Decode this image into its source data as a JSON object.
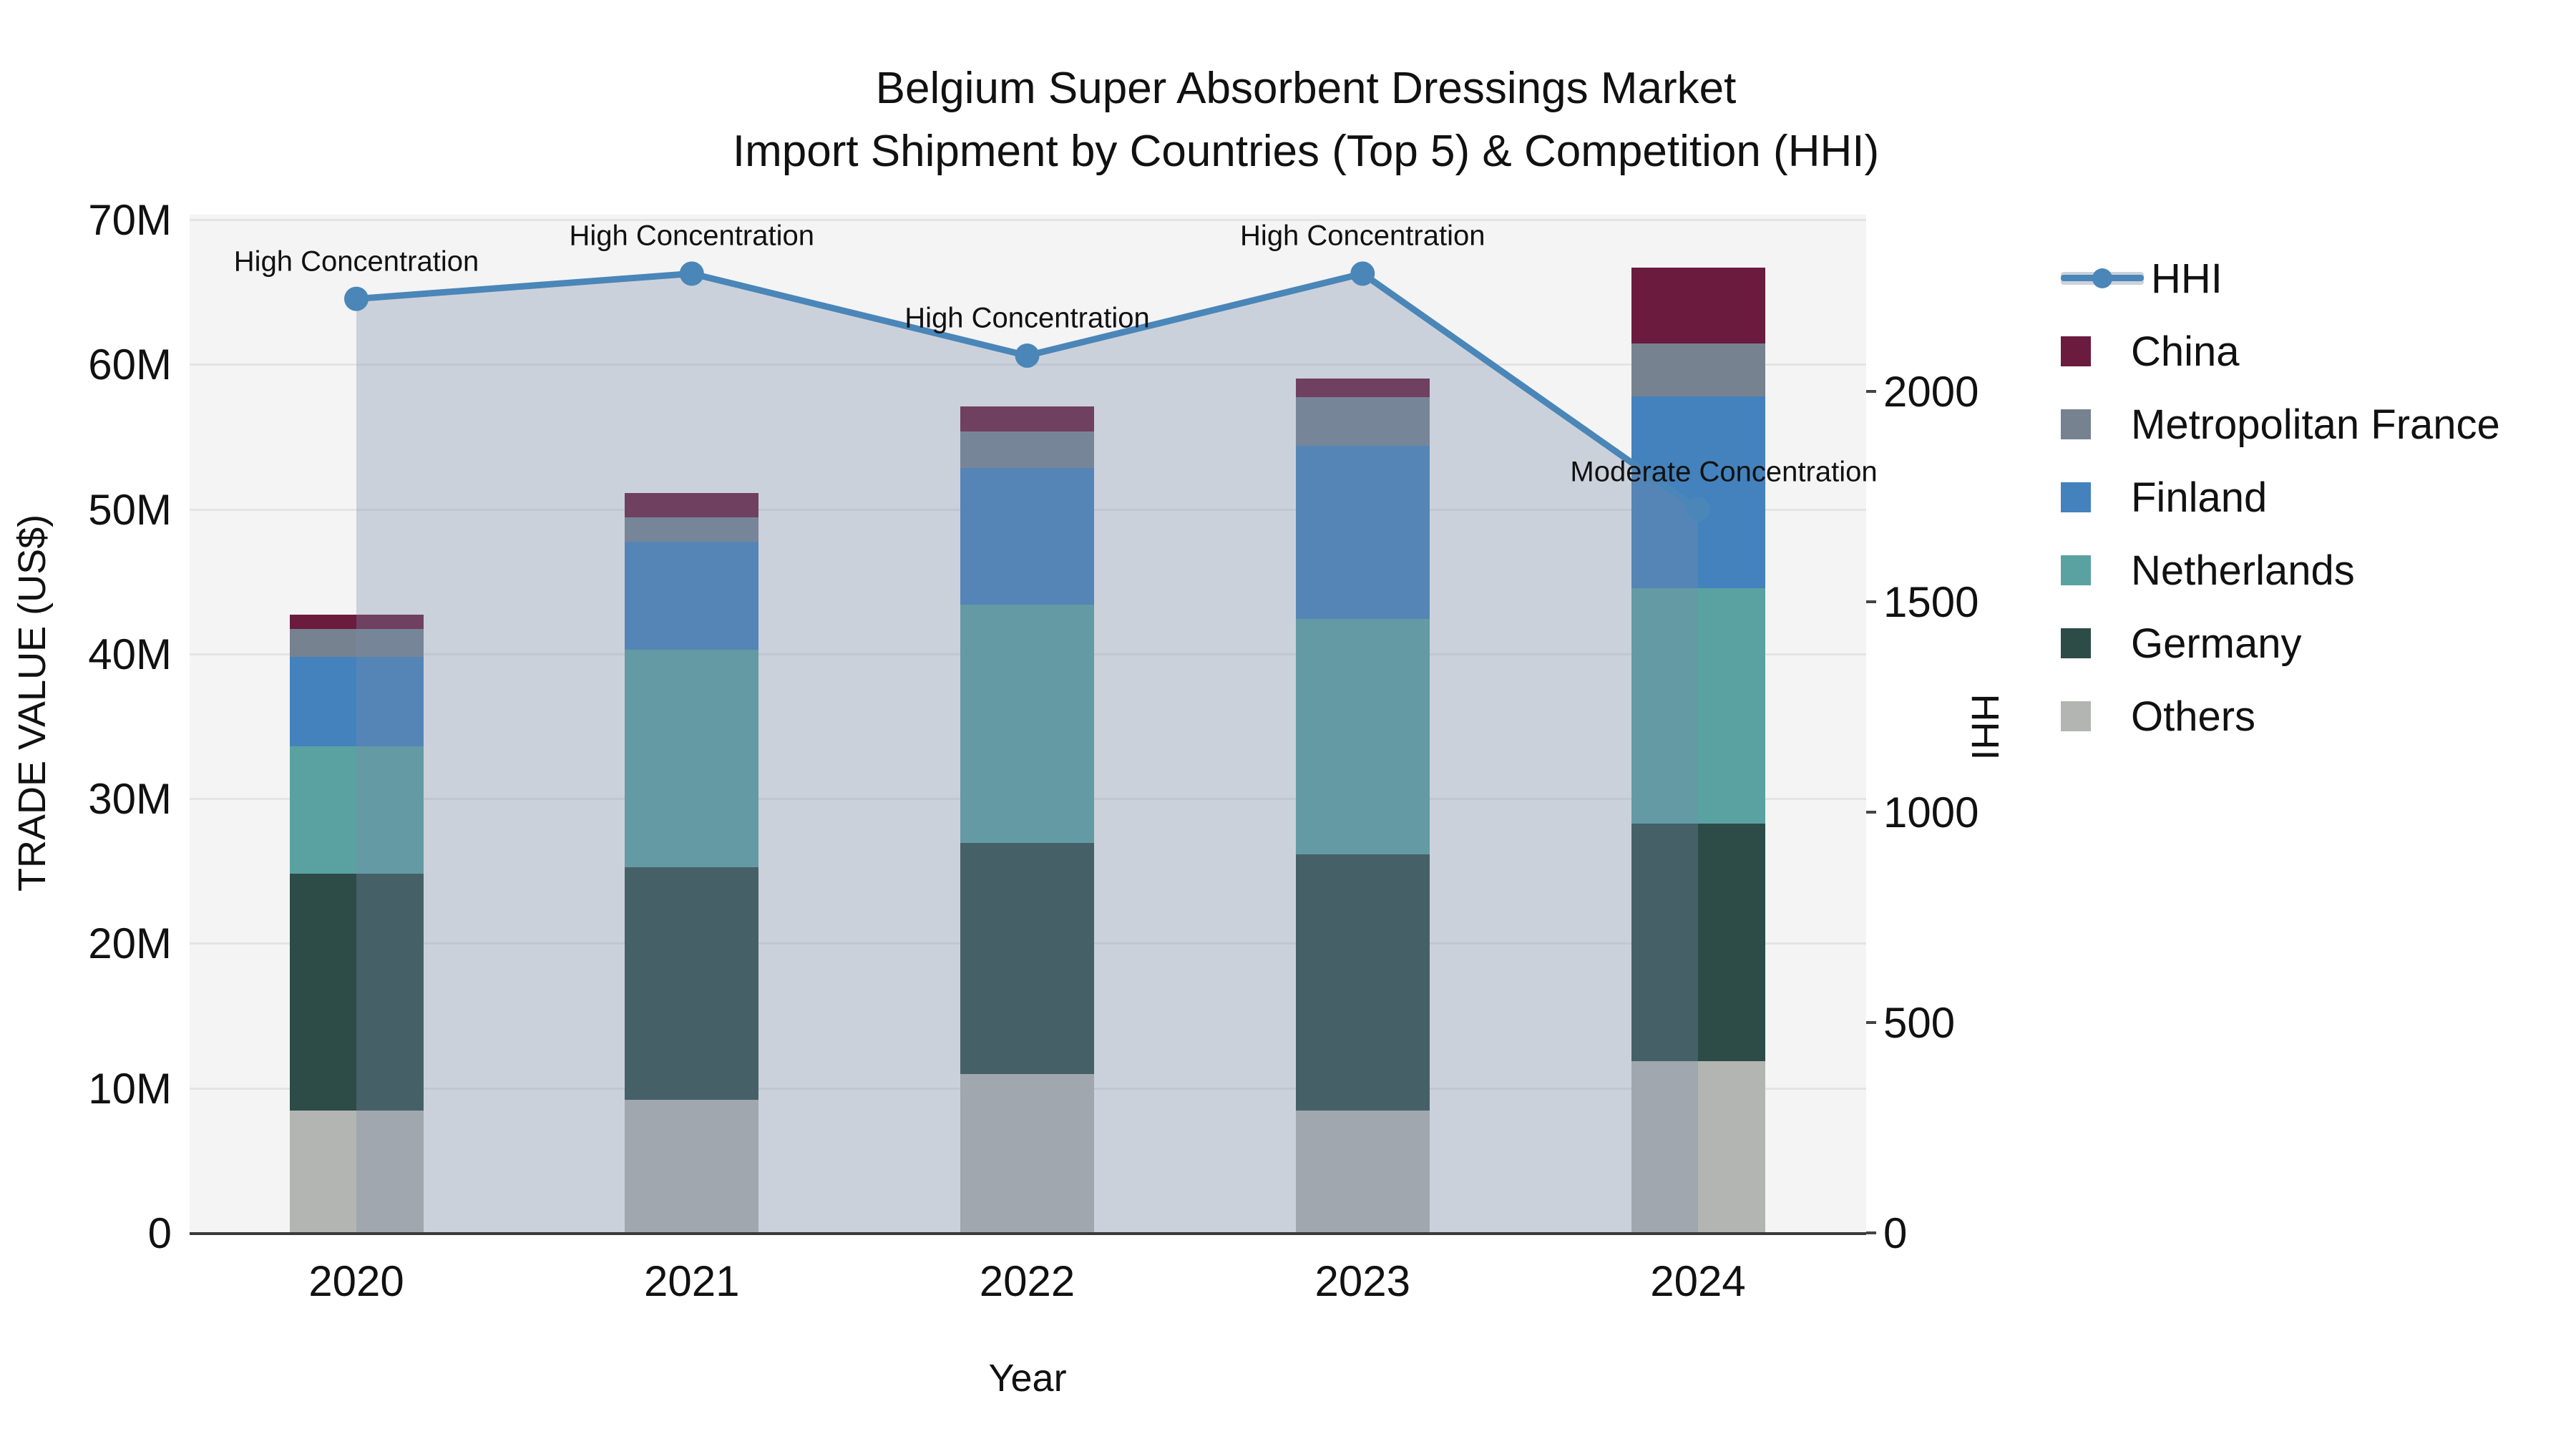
{
  "title": {
    "line1": "Belgium Super Absorbent Dressings Market",
    "line2": "Import Shipment by Countries (Top 5) & Competition (HHI)"
  },
  "axes": {
    "y_left": {
      "title": "TRADE VALUE (US$)",
      "tick_labels": [
        "0",
        "10M",
        "20M",
        "30M",
        "40M",
        "50M",
        "60M",
        "70M"
      ],
      "tick_values": [
        0,
        10,
        20,
        30,
        40,
        50,
        60,
        70
      ],
      "max": 70
    },
    "y_right": {
      "title": "HHI",
      "tick_labels": [
        "0",
        "500",
        "1000",
        "1500",
        "2000"
      ],
      "tick_values": [
        0,
        500,
        1000,
        1500,
        2000
      ],
      "max": 2000
    },
    "x": {
      "title": "Year",
      "categories": [
        "2020",
        "2021",
        "2022",
        "2023",
        "2024"
      ]
    }
  },
  "legend": [
    {
      "label": "HHI",
      "type": "line",
      "color": "#4A86B8"
    },
    {
      "label": "China",
      "type": "square",
      "color": "#6B1B3D"
    },
    {
      "label": "Metropolitan France",
      "type": "square",
      "color": "#76828F"
    },
    {
      "label": "Finland",
      "type": "square",
      "color": "#4382BD"
    },
    {
      "label": "Netherlands",
      "type": "square",
      "color": "#5AA2A2"
    },
    {
      "label": "Germany",
      "type": "square",
      "color": "#2D4B47"
    },
    {
      "label": "Others",
      "type": "square",
      "color": "#B3B5B2"
    }
  ],
  "chart_data": {
    "type": "bar",
    "subtype": "stacked bars with secondary-axis line+area",
    "categories": [
      "2020",
      "2021",
      "2022",
      "2023",
      "2024"
    ],
    "value_unit": "M US$",
    "series": [
      {
        "name": "Others",
        "color": "#B3B5B2",
        "values": [
          8.45,
          9.2,
          10.95,
          8.45,
          11.85
        ]
      },
      {
        "name": "Germany",
        "color": "#2D4B47",
        "values": [
          16.35,
          16.05,
          16.0,
          17.7,
          16.45
        ]
      },
      {
        "name": "Netherlands",
        "color": "#5AA2A2",
        "values": [
          8.8,
          15.05,
          16.45,
          16.25,
          16.25
        ]
      },
      {
        "name": "Finland",
        "color": "#4382BD",
        "values": [
          6.2,
          7.45,
          9.45,
          12.0,
          13.25
        ]
      },
      {
        "name": "Metropolitan France",
        "color": "#76828F",
        "values": [
          1.9,
          1.7,
          2.5,
          3.35,
          3.65
        ]
      },
      {
        "name": "China",
        "color": "#6B1B3D",
        "values": [
          1.0,
          1.65,
          1.75,
          1.3,
          5.25
        ]
      }
    ],
    "stack_totals": [
      42.7,
      51.1,
      57.1,
      59.05,
      66.7
    ],
    "line": {
      "name": "HHI",
      "axis": "right",
      "color": "#4A86B8",
      "area_fill": "rgba(120,139,171,0.33)",
      "values": [
        2220,
        2280,
        2085,
        2280,
        1720
      ]
    },
    "annotations": [
      {
        "category": "2020",
        "text": "High Concentration"
      },
      {
        "category": "2021",
        "text": "High Concentration"
      },
      {
        "category": "2022",
        "text": "High Concentration"
      },
      {
        "category": "2023",
        "text": "High Concentration"
      },
      {
        "category": "2024",
        "text": "Moderate Concentration"
      }
    ],
    "ylabel_left": "TRADE VALUE (US$)",
    "ylabel_right": "HHI",
    "xlabel": "Year",
    "ylim_left": [
      0,
      70
    ],
    "ylim_right": [
      0,
      2400
    ],
    "grid": true,
    "legend_position": "right"
  }
}
